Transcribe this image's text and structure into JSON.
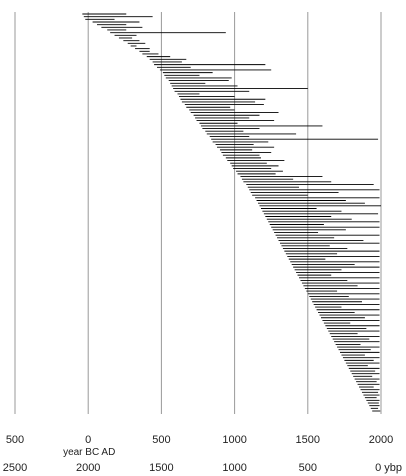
{
  "chart_data": {
    "type": "timeline",
    "title": "",
    "xlim": [
      -500,
      2000
    ],
    "grid": true,
    "axis_top": {
      "ticks": [
        -500,
        0,
        500,
        1000,
        1500,
        2000
      ],
      "tick_labels": [
        "500",
        "0",
        "500",
        "1000",
        "1500",
        "2000"
      ],
      "era_label": "year BC  AD"
    },
    "axis_bottom": {
      "ticks": [
        2500,
        2000,
        1500,
        1000,
        500,
        0
      ],
      "tick_labels": [
        "2500",
        "2000",
        "1500",
        "1000",
        "500",
        "0 ybp"
      ]
    },
    "colors": {
      "bars": "#000000",
      "grid": "#999999",
      "text": "#222222"
    },
    "intervals": [
      [
        -40,
        260
      ],
      [
        -30,
        440
      ],
      [
        -20,
        180
      ],
      [
        30,
        350
      ],
      [
        60,
        260
      ],
      [
        90,
        370
      ],
      [
        130,
        260
      ],
      [
        150,
        940
      ],
      [
        180,
        330
      ],
      [
        210,
        300
      ],
      [
        240,
        350
      ],
      [
        270,
        390
      ],
      [
        290,
        330
      ],
      [
        320,
        420
      ],
      [
        350,
        420
      ],
      [
        370,
        480
      ],
      [
        400,
        560
      ],
      [
        420,
        670
      ],
      [
        440,
        640
      ],
      [
        450,
        1210
      ],
      [
        470,
        700
      ],
      [
        490,
        1250
      ],
      [
        510,
        850
      ],
      [
        520,
        760
      ],
      [
        530,
        980
      ],
      [
        550,
        960
      ],
      [
        560,
        800
      ],
      [
        570,
        1020
      ],
      [
        580,
        1500
      ],
      [
        590,
        1100
      ],
      [
        610,
        760
      ],
      [
        620,
        1000
      ],
      [
        630,
        1210
      ],
      [
        640,
        1140
      ],
      [
        660,
        1200
      ],
      [
        670,
        970
      ],
      [
        690,
        1000
      ],
      [
        700,
        1300
      ],
      [
        720,
        1170
      ],
      [
        730,
        1100
      ],
      [
        740,
        1270
      ],
      [
        760,
        1020
      ],
      [
        770,
        1600
      ],
      [
        780,
        1170
      ],
      [
        800,
        1060
      ],
      [
        810,
        1420
      ],
      [
        830,
        1100
      ],
      [
        840,
        1980
      ],
      [
        850,
        1230
      ],
      [
        870,
        1130
      ],
      [
        880,
        1270
      ],
      [
        900,
        1120
      ],
      [
        910,
        1250
      ],
      [
        920,
        1170
      ],
      [
        940,
        1180
      ],
      [
        950,
        1340
      ],
      [
        970,
        1220
      ],
      [
        980,
        1300
      ],
      [
        990,
        1250
      ],
      [
        1010,
        1330
      ],
      [
        1020,
        1280
      ],
      [
        1040,
        1600
      ],
      [
        1050,
        1400
      ],
      [
        1060,
        1660
      ],
      [
        1080,
        1950
      ],
      [
        1090,
        1440
      ],
      [
        1100,
        1990
      ],
      [
        1110,
        1710
      ],
      [
        1120,
        1500
      ],
      [
        1140,
        1990
      ],
      [
        1150,
        1760
      ],
      [
        1160,
        1890
      ],
      [
        1170,
        2000
      ],
      [
        1180,
        1560
      ],
      [
        1190,
        1730
      ],
      [
        1200,
        1980
      ],
      [
        1210,
        1660
      ],
      [
        1220,
        1800
      ],
      [
        1230,
        1990
      ],
      [
        1240,
        1610
      ],
      [
        1250,
        1990
      ],
      [
        1260,
        1760
      ],
      [
        1270,
        1570
      ],
      [
        1280,
        1990
      ],
      [
        1290,
        1680
      ],
      [
        1300,
        1880
      ],
      [
        1310,
        1990
      ],
      [
        1320,
        1650
      ],
      [
        1330,
        1770
      ],
      [
        1340,
        1990
      ],
      [
        1350,
        1700
      ],
      [
        1360,
        1990
      ],
      [
        1370,
        1620
      ],
      [
        1380,
        1990
      ],
      [
        1390,
        1820
      ],
      [
        1400,
        1990
      ],
      [
        1410,
        1730
      ],
      [
        1420,
        1990
      ],
      [
        1430,
        1660
      ],
      [
        1440,
        1990
      ],
      [
        1450,
        1770
      ],
      [
        1460,
        1990
      ],
      [
        1470,
        1840
      ],
      [
        1480,
        1990
      ],
      [
        1490,
        1700
      ],
      [
        1500,
        1990
      ],
      [
        1510,
        1780
      ],
      [
        1520,
        1990
      ],
      [
        1530,
        1870
      ],
      [
        1540,
        1990
      ],
      [
        1550,
        1730
      ],
      [
        1560,
        1990
      ],
      [
        1570,
        1820
      ],
      [
        1580,
        1990
      ],
      [
        1590,
        1890
      ],
      [
        1600,
        1990
      ],
      [
        1610,
        1790
      ],
      [
        1620,
        1990
      ],
      [
        1630,
        1900
      ],
      [
        1640,
        1990
      ],
      [
        1650,
        1840
      ],
      [
        1660,
        1990
      ],
      [
        1670,
        1920
      ],
      [
        1680,
        1990
      ],
      [
        1690,
        1860
      ],
      [
        1700,
        1990
      ],
      [
        1710,
        1930
      ],
      [
        1720,
        1990
      ],
      [
        1730,
        1890
      ],
      [
        1740,
        1990
      ],
      [
        1750,
        1950
      ],
      [
        1760,
        1990
      ],
      [
        1770,
        1910
      ],
      [
        1780,
        1990
      ],
      [
        1790,
        1960
      ],
      [
        1800,
        1990
      ],
      [
        1810,
        1940
      ],
      [
        1820,
        1990
      ],
      [
        1830,
        1970
      ],
      [
        1840,
        1990
      ],
      [
        1850,
        1950
      ],
      [
        1860,
        1990
      ],
      [
        1870,
        1980
      ],
      [
        1880,
        1990
      ],
      [
        1890,
        1970
      ],
      [
        1900,
        1990
      ],
      [
        1910,
        1985
      ],
      [
        1920,
        1990
      ],
      [
        1930,
        1980
      ],
      [
        1940,
        1995
      ]
    ]
  }
}
